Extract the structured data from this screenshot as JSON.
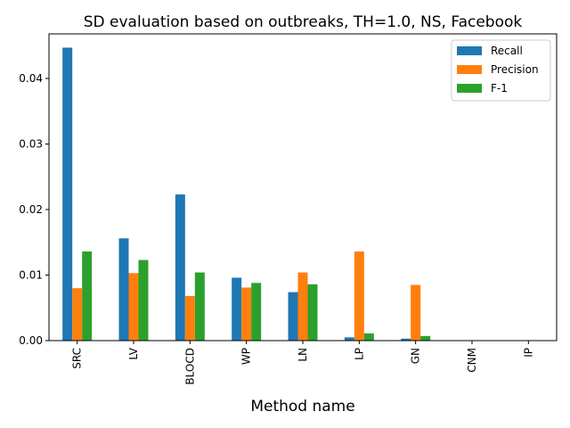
{
  "chart_data": {
    "type": "bar",
    "title": "SD evaluation based on outbreaks, TH=1.0, NS, Facebook",
    "xlabel": "Method name",
    "ylabel": "",
    "ylim": [
      0,
      0.0468
    ],
    "yticks": [
      0.0,
      0.01,
      0.02,
      0.03,
      0.04
    ],
    "ytick_labels": [
      "0.00",
      "0.01",
      "0.02",
      "0.03",
      "0.04"
    ],
    "categories": [
      "SRC",
      "LV",
      "BLOCD",
      "WP",
      "LN",
      "LP",
      "GN",
      "CNM",
      "IP"
    ],
    "series": [
      {
        "name": "Recall",
        "color": "#1f77b4",
        "values": [
          0.0447,
          0.0156,
          0.0223,
          0.0096,
          0.0074,
          0.0005,
          0.0003,
          0.0,
          0.0
        ]
      },
      {
        "name": "Precision",
        "color": "#ff7f0e",
        "values": [
          0.008,
          0.0103,
          0.0068,
          0.0081,
          0.0104,
          0.0136,
          0.0085,
          0.0,
          0.0
        ]
      },
      {
        "name": "F-1",
        "color": "#2ca02c",
        "values": [
          0.0136,
          0.0123,
          0.0104,
          0.0088,
          0.0086,
          0.0011,
          0.0007,
          0.0,
          0.0
        ]
      }
    ],
    "legend_position": "top-right",
    "grid": false
  }
}
